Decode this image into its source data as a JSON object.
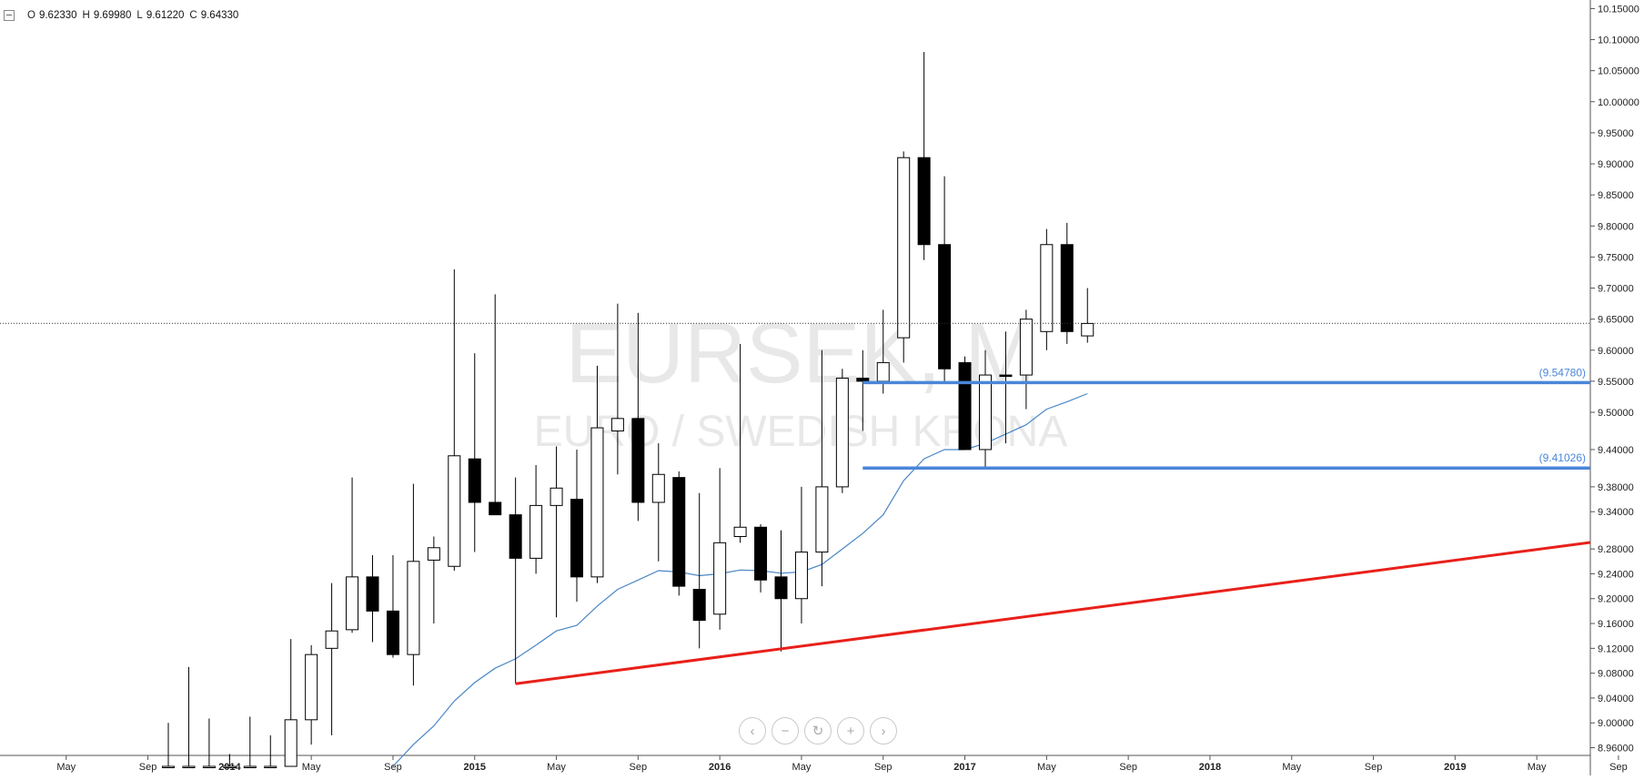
{
  "ohlc_header": {
    "o_key": "O",
    "o_val": "9.62330",
    "h_key": "H",
    "h_val": "9.69980",
    "l_key": "L",
    "l_val": "9.61220",
    "c_key": "C",
    "c_val": "9.64330"
  },
  "watermark": {
    "symbol": "EURSEK, M",
    "description": "EURO / SWEDISH KRONA"
  },
  "nav": {
    "back": "‹",
    "zoom_out": "−",
    "reset": "↻",
    "zoom_in": "+",
    "forward": "›"
  },
  "colors": {
    "up_fill": "#ffffff",
    "down_fill": "#000000",
    "support_line": "#4a86d8",
    "trend_line": "#e8201a",
    "ma_line": "#4a86c5"
  },
  "chart_data": {
    "type": "candlestick",
    "y_axis": {
      "range": [
        8.93,
        10.16
      ],
      "ticks": [
        "10.15000",
        "10.10000",
        "10.05000",
        "10.00000",
        "9.95000",
        "9.90000",
        "9.85000",
        "9.80000",
        "9.75000",
        "9.70000",
        "9.65000",
        "9.60000",
        "9.55000",
        "9.50000",
        "9.44000",
        "9.38000",
        "9.34000",
        "9.28000",
        "9.24000",
        "9.20000",
        "9.16000",
        "9.12000",
        "9.08000",
        "9.04000",
        "9.00000",
        "8.96000"
      ]
    },
    "x_axis": {
      "labels": [
        "May",
        "Sep",
        "2014",
        "May",
        "Sep",
        "2015",
        "May",
        "Sep",
        "2016",
        "May",
        "Sep",
        "2017",
        "May",
        "Sep",
        "2018",
        "May",
        "Sep",
        "2019",
        "May",
        "Sep"
      ],
      "bold_labels": [
        "2014",
        "2015",
        "2016",
        "2017",
        "2018",
        "2019"
      ]
    },
    "candles": [
      {
        "date": "2013-10",
        "o": 8.93,
        "h": 9.0,
        "l": 8.93,
        "c": 8.93
      },
      {
        "date": "2013-11",
        "o": 8.93,
        "h": 9.09,
        "l": 8.93,
        "c": 8.93
      },
      {
        "date": "2013-12",
        "o": 8.93,
        "h": 9.007,
        "l": 8.93,
        "c": 8.93
      },
      {
        "date": "2014-01",
        "o": 8.93,
        "h": 8.95,
        "l": 8.93,
        "c": 8.93
      },
      {
        "date": "2014-02",
        "o": 8.93,
        "h": 9.01,
        "l": 8.93,
        "c": 8.93
      },
      {
        "date": "2014-03",
        "o": 8.93,
        "h": 8.98,
        "l": 8.93,
        "c": 8.93
      },
      {
        "date": "2014-04",
        "o": 8.93,
        "h": 9.135,
        "l": 8.93,
        "c": 9.005
      },
      {
        "date": "2014-05",
        "o": 9.005,
        "h": 9.125,
        "l": 8.965,
        "c": 9.11
      },
      {
        "date": "2014-06",
        "o": 9.12,
        "h": 9.225,
        "l": 8.98,
        "c": 9.148
      },
      {
        "date": "2014-07",
        "o": 9.15,
        "h": 9.395,
        "l": 9.145,
        "c": 9.235
      },
      {
        "date": "2014-08",
        "o": 9.235,
        "h": 9.27,
        "l": 9.13,
        "c": 9.18
      },
      {
        "date": "2014-09",
        "o": 9.18,
        "h": 9.27,
        "l": 9.105,
        "c": 9.11
      },
      {
        "date": "2014-10",
        "o": 9.11,
        "h": 9.385,
        "l": 9.06,
        "c": 9.26
      },
      {
        "date": "2014-11",
        "o": 9.262,
        "h": 9.3,
        "l": 9.16,
        "c": 9.282
      },
      {
        "date": "2014-12",
        "o": 9.252,
        "h": 9.73,
        "l": 9.245,
        "c": 9.43
      },
      {
        "date": "2015-01",
        "o": 9.425,
        "h": 9.595,
        "l": 9.275,
        "c": 9.355
      },
      {
        "date": "2015-02",
        "o": 9.355,
        "h": 9.69,
        "l": 9.34,
        "c": 9.335
      },
      {
        "date": "2015-03",
        "o": 9.335,
        "h": 9.395,
        "l": 9.063,
        "c": 9.265
      },
      {
        "date": "2015-04",
        "o": 9.265,
        "h": 9.415,
        "l": 9.24,
        "c": 9.35
      },
      {
        "date": "2015-05",
        "o": 9.35,
        "h": 9.445,
        "l": 9.17,
        "c": 9.378
      },
      {
        "date": "2015-06",
        "o": 9.36,
        "h": 9.44,
        "l": 9.195,
        "c": 9.235
      },
      {
        "date": "2015-07",
        "o": 9.235,
        "h": 9.575,
        "l": 9.225,
        "c": 9.475
      },
      {
        "date": "2015-08",
        "o": 9.47,
        "h": 9.675,
        "l": 9.4,
        "c": 9.49
      },
      {
        "date": "2015-09",
        "o": 9.49,
        "h": 9.66,
        "l": 9.325,
        "c": 9.355
      },
      {
        "date": "2015-10",
        "o": 9.355,
        "h": 9.45,
        "l": 9.26,
        "c": 9.4
      },
      {
        "date": "2015-11",
        "o": 9.395,
        "h": 9.405,
        "l": 9.205,
        "c": 9.22
      },
      {
        "date": "2015-12",
        "o": 9.215,
        "h": 9.37,
        "l": 9.12,
        "c": 9.165
      },
      {
        "date": "2016-01",
        "o": 9.175,
        "h": 9.41,
        "l": 9.15,
        "c": 9.29
      },
      {
        "date": "2016-02",
        "o": 9.3,
        "h": 9.61,
        "l": 9.29,
        "c": 9.315
      },
      {
        "date": "2016-03",
        "o": 9.315,
        "h": 9.32,
        "l": 9.21,
        "c": 9.23
      },
      {
        "date": "2016-04",
        "o": 9.235,
        "h": 9.31,
        "l": 9.115,
        "c": 9.2
      },
      {
        "date": "2016-05",
        "o": 9.2,
        "h": 9.38,
        "l": 9.16,
        "c": 9.275
      },
      {
        "date": "2016-06",
        "o": 9.275,
        "h": 9.6,
        "l": 9.22,
        "c": 9.38
      },
      {
        "date": "2016-07",
        "o": 9.38,
        "h": 9.57,
        "l": 9.37,
        "c": 9.555
      },
      {
        "date": "2016-08",
        "o": 9.555,
        "h": 9.6,
        "l": 9.47,
        "c": 9.55
      },
      {
        "date": "2016-09",
        "o": 9.55,
        "h": 9.665,
        "l": 9.53,
        "c": 9.58
      },
      {
        "date": "2016-10",
        "o": 9.62,
        "h": 9.92,
        "l": 9.58,
        "c": 9.91
      },
      {
        "date": "2016-11",
        "o": 9.91,
        "h": 10.08,
        "l": 9.745,
        "c": 9.77
      },
      {
        "date": "2016-12",
        "o": 9.77,
        "h": 9.88,
        "l": 9.55,
        "c": 9.57
      },
      {
        "date": "2017-01",
        "o": 9.58,
        "h": 9.59,
        "l": 9.44,
        "c": 9.44
      },
      {
        "date": "2017-02",
        "o": 9.44,
        "h": 9.6,
        "l": 9.41,
        "c": 9.56
      },
      {
        "date": "2017-03",
        "o": 9.56,
        "h": 9.63,
        "l": 9.45,
        "c": 9.559
      },
      {
        "date": "2017-04",
        "o": 9.56,
        "h": 9.665,
        "l": 9.505,
        "c": 9.65
      },
      {
        "date": "2017-05",
        "o": 9.63,
        "h": 9.795,
        "l": 9.6,
        "c": 9.77
      },
      {
        "date": "2017-06",
        "o": 9.77,
        "h": 9.805,
        "l": 9.61,
        "c": 9.63
      },
      {
        "date": "2017-07",
        "o": 9.623,
        "h": 9.7,
        "l": 9.612,
        "c": 9.643
      }
    ],
    "moving_average": [
      {
        "date": "2014-09",
        "v": 8.93
      },
      {
        "date": "2014-10",
        "v": 8.965
      },
      {
        "date": "2014-11",
        "v": 8.995
      },
      {
        "date": "2014-12",
        "v": 9.035
      },
      {
        "date": "2015-01",
        "v": 9.065
      },
      {
        "date": "2015-02",
        "v": 9.088
      },
      {
        "date": "2015-03",
        "v": 9.103
      },
      {
        "date": "2015-04",
        "v": 9.125
      },
      {
        "date": "2015-05",
        "v": 9.148
      },
      {
        "date": "2015-06",
        "v": 9.157
      },
      {
        "date": "2015-07",
        "v": 9.188
      },
      {
        "date": "2015-08",
        "v": 9.215
      },
      {
        "date": "2015-09",
        "v": 9.23
      },
      {
        "date": "2015-10",
        "v": 9.245
      },
      {
        "date": "2015-11",
        "v": 9.243
      },
      {
        "date": "2015-12",
        "v": 9.237
      },
      {
        "date": "2016-01",
        "v": 9.24
      },
      {
        "date": "2016-02",
        "v": 9.246
      },
      {
        "date": "2016-03",
        "v": 9.245
      },
      {
        "date": "2016-04",
        "v": 9.241
      },
      {
        "date": "2016-05",
        "v": 9.243
      },
      {
        "date": "2016-06",
        "v": 9.255
      },
      {
        "date": "2016-07",
        "v": 9.28
      },
      {
        "date": "2016-08",
        "v": 9.305
      },
      {
        "date": "2016-09",
        "v": 9.335
      },
      {
        "date": "2016-10",
        "v": 9.39
      },
      {
        "date": "2016-11",
        "v": 9.425
      },
      {
        "date": "2016-12",
        "v": 9.44
      },
      {
        "date": "2017-01",
        "v": 9.44
      },
      {
        "date": "2017-02",
        "v": 9.45
      },
      {
        "date": "2017-03",
        "v": 9.465
      },
      {
        "date": "2017-04",
        "v": 9.48
      },
      {
        "date": "2017-05",
        "v": 9.505
      },
      {
        "date": "2017-06",
        "v": 9.517
      },
      {
        "date": "2017-07",
        "v": 9.53
      }
    ],
    "last_price": 9.6433,
    "horizontal_levels": [
      {
        "value": 9.5478,
        "label": "(9.54780)",
        "from": "2016-08"
      },
      {
        "value": 9.41026,
        "label": "(9.41026)",
        "from": "2016-08"
      }
    ],
    "trend_line": {
      "from": {
        "date": "2015-03",
        "value": 9.063
      },
      "to": {
        "date": "2019-11",
        "value": 9.305
      }
    }
  }
}
